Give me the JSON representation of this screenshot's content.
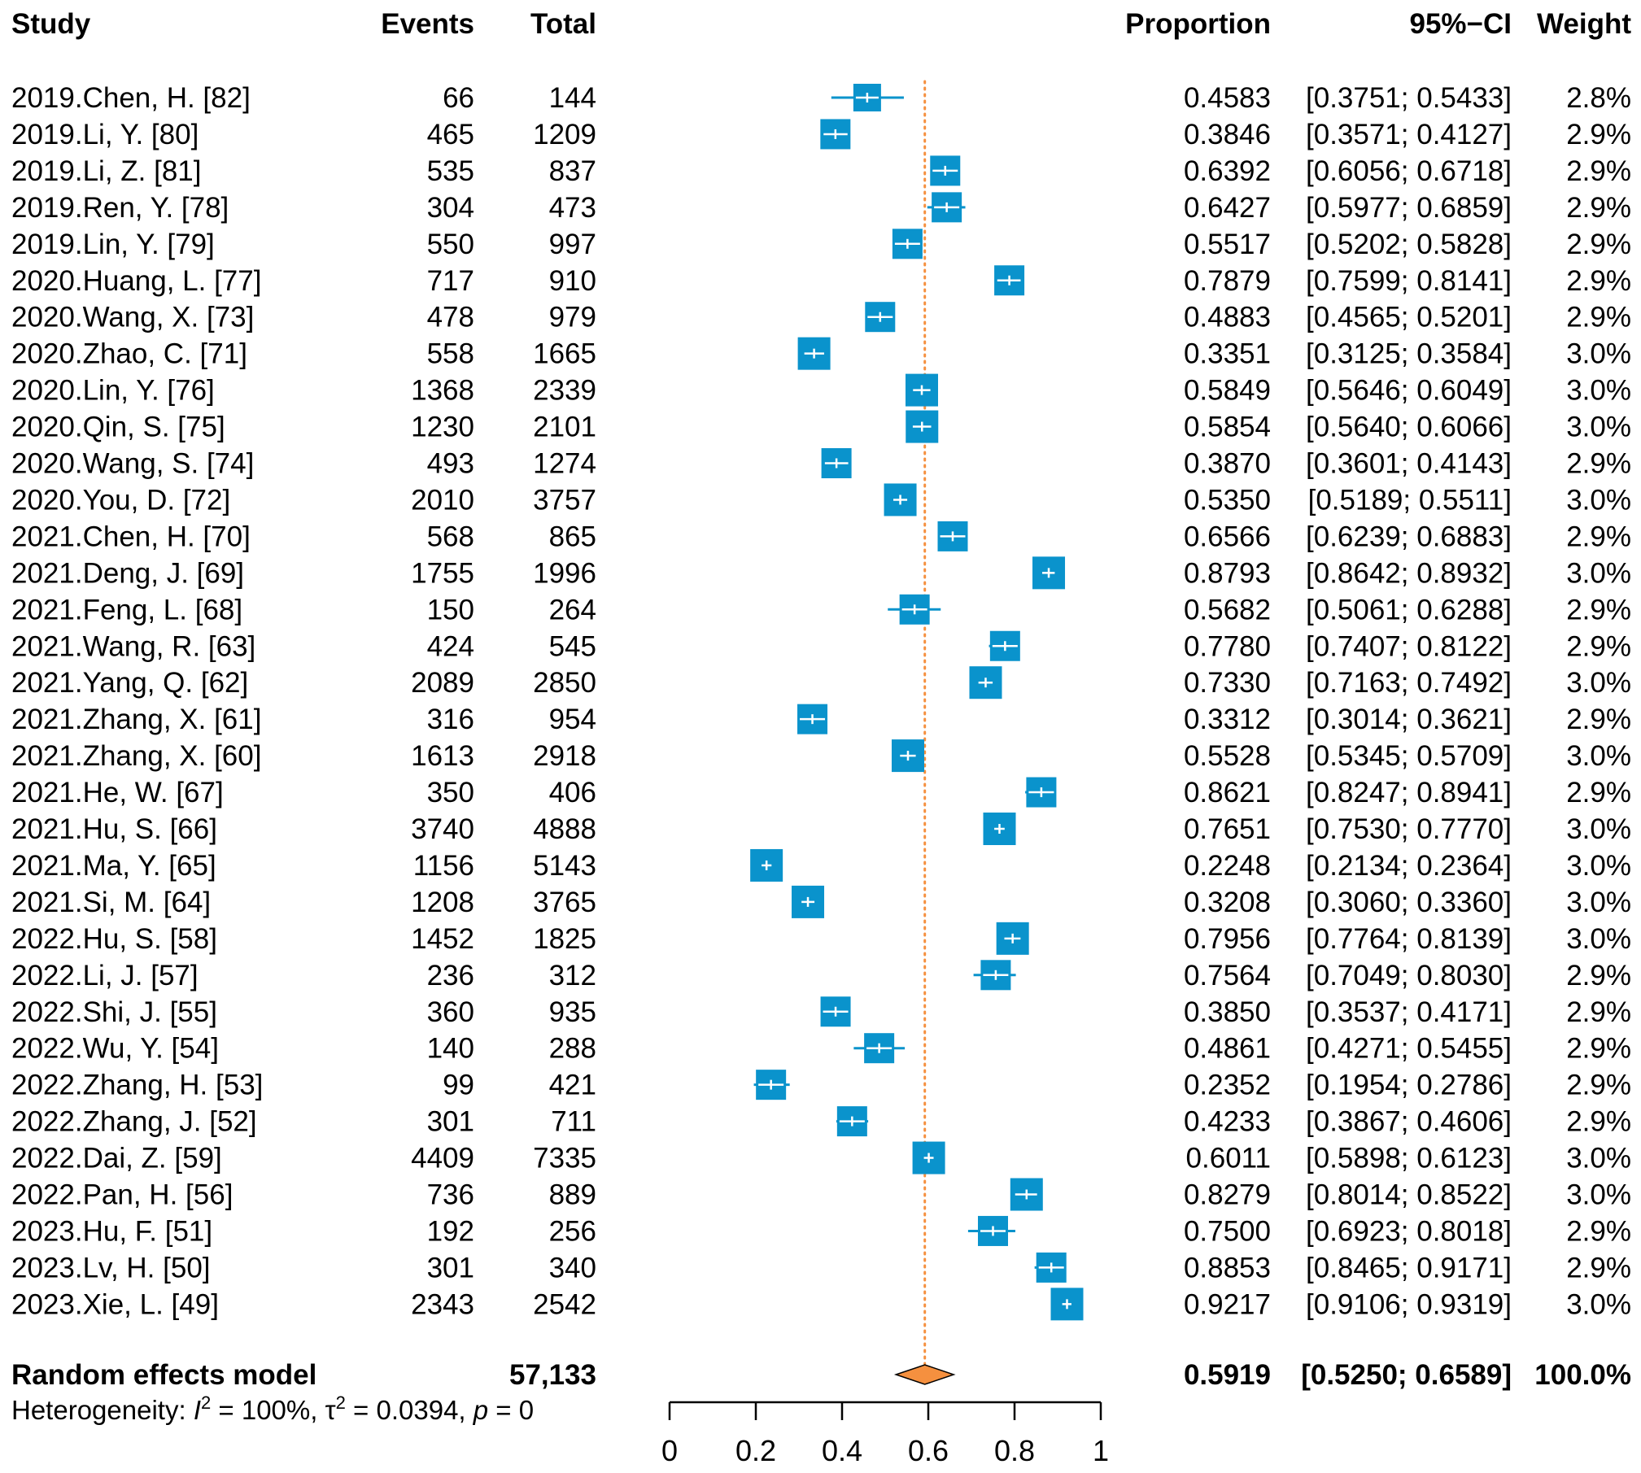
{
  "chart_data": {
    "type": "forest",
    "headers": {
      "study": "Study",
      "events": "Events",
      "total": "Total",
      "proportion": "Proportion",
      "ci": "95%−CI",
      "weight": "Weight"
    },
    "studies": [
      {
        "study": "2019.Chen, H. [82]",
        "events": "66",
        "total": "144",
        "proportion": 0.4583,
        "proportion_text": "0.4583",
        "ci": [
          0.3751,
          0.5433
        ],
        "ci_text": "[0.3751; 0.5433]",
        "weight": 2.8,
        "weight_text": "2.8%"
      },
      {
        "study": "2019.Li, Y. [80]",
        "events": "465",
        "total": "1209",
        "proportion": 0.3846,
        "proportion_text": "0.3846",
        "ci": [
          0.3571,
          0.4127
        ],
        "ci_text": "[0.3571; 0.4127]",
        "weight": 2.9,
        "weight_text": "2.9%"
      },
      {
        "study": "2019.Li, Z. [81]",
        "events": "535",
        "total": "837",
        "proportion": 0.6392,
        "proportion_text": "0.6392",
        "ci": [
          0.6056,
          0.6718
        ],
        "ci_text": "[0.6056; 0.6718]",
        "weight": 2.9,
        "weight_text": "2.9%"
      },
      {
        "study": "2019.Ren, Y. [78]",
        "events": "304",
        "total": "473",
        "proportion": 0.6427,
        "proportion_text": "0.6427",
        "ci": [
          0.5977,
          0.6859
        ],
        "ci_text": "[0.5977; 0.6859]",
        "weight": 2.9,
        "weight_text": "2.9%"
      },
      {
        "study": "2019.Lin, Y. [79]",
        "events": "550",
        "total": "997",
        "proportion": 0.5517,
        "proportion_text": "0.5517",
        "ci": [
          0.5202,
          0.5828
        ],
        "ci_text": "[0.5202; 0.5828]",
        "weight": 2.9,
        "weight_text": "2.9%"
      },
      {
        "study": "2020.Huang, L. [77]",
        "events": "717",
        "total": "910",
        "proportion": 0.7879,
        "proportion_text": "0.7879",
        "ci": [
          0.7599,
          0.8141
        ],
        "ci_text": "[0.7599; 0.8141]",
        "weight": 2.9,
        "weight_text": "2.9%"
      },
      {
        "study": "2020.Wang, X. [73]",
        "events": "478",
        "total": "979",
        "proportion": 0.4883,
        "proportion_text": "0.4883",
        "ci": [
          0.4565,
          0.5201
        ],
        "ci_text": "[0.4565; 0.5201]",
        "weight": 2.9,
        "weight_text": "2.9%"
      },
      {
        "study": "2020.Zhao, C. [71]",
        "events": "558",
        "total": "1665",
        "proportion": 0.3351,
        "proportion_text": "0.3351",
        "ci": [
          0.3125,
          0.3584
        ],
        "ci_text": "[0.3125; 0.3584]",
        "weight": 3.0,
        "weight_text": "3.0%"
      },
      {
        "study": "2020.Lin, Y. [76]",
        "events": "1368",
        "total": "2339",
        "proportion": 0.5849,
        "proportion_text": "0.5849",
        "ci": [
          0.5646,
          0.6049
        ],
        "ci_text": "[0.5646; 0.6049]",
        "weight": 3.0,
        "weight_text": "3.0%"
      },
      {
        "study": "2020.Qin, S. [75]",
        "events": "1230",
        "total": "2101",
        "proportion": 0.5854,
        "proportion_text": "0.5854",
        "ci": [
          0.564,
          0.6066
        ],
        "ci_text": "[0.5640; 0.6066]",
        "weight": 3.0,
        "weight_text": "3.0%"
      },
      {
        "study": "2020.Wang, S. [74]",
        "events": "493",
        "total": "1274",
        "proportion": 0.387,
        "proportion_text": "0.3870",
        "ci": [
          0.3601,
          0.4143
        ],
        "ci_text": "[0.3601; 0.4143]",
        "weight": 2.9,
        "weight_text": "2.9%"
      },
      {
        "study": "2020.You, D. [72]",
        "events": "2010",
        "total": "3757",
        "proportion": 0.535,
        "proportion_text": "0.5350",
        "ci": [
          0.5189,
          0.5511
        ],
        "ci_text": "[0.5189; 0.5511]",
        "weight": 3.0,
        "weight_text": "3.0%"
      },
      {
        "study": "2021.Chen, H. [70]",
        "events": "568",
        "total": "865",
        "proportion": 0.6566,
        "proportion_text": "0.6566",
        "ci": [
          0.6239,
          0.6883
        ],
        "ci_text": "[0.6239; 0.6883]",
        "weight": 2.9,
        "weight_text": "2.9%"
      },
      {
        "study": "2021.Deng, J. [69]",
        "events": "1755",
        "total": "1996",
        "proportion": 0.8793,
        "proportion_text": "0.8793",
        "ci": [
          0.8642,
          0.8932
        ],
        "ci_text": "[0.8642; 0.8932]",
        "weight": 3.0,
        "weight_text": "3.0%"
      },
      {
        "study": "2021.Feng, L. [68]",
        "events": "150",
        "total": "264",
        "proportion": 0.5682,
        "proportion_text": "0.5682",
        "ci": [
          0.5061,
          0.6288
        ],
        "ci_text": "[0.5061; 0.6288]",
        "weight": 2.9,
        "weight_text": "2.9%"
      },
      {
        "study": "2021.Wang, R. [63]",
        "events": "424",
        "total": "545",
        "proportion": 0.778,
        "proportion_text": "0.7780",
        "ci": [
          0.7407,
          0.8122
        ],
        "ci_text": "[0.7407; 0.8122]",
        "weight": 2.9,
        "weight_text": "2.9%"
      },
      {
        "study": "2021.Yang, Q. [62]",
        "events": "2089",
        "total": "2850",
        "proportion": 0.733,
        "proportion_text": "0.7330",
        "ci": [
          0.7163,
          0.7492
        ],
        "ci_text": "[0.7163; 0.7492]",
        "weight": 3.0,
        "weight_text": "3.0%"
      },
      {
        "study": "2021.Zhang, X. [61]",
        "events": "316",
        "total": "954",
        "proportion": 0.3312,
        "proportion_text": "0.3312",
        "ci": [
          0.3014,
          0.3621
        ],
        "ci_text": "[0.3014; 0.3621]",
        "weight": 2.9,
        "weight_text": "2.9%"
      },
      {
        "study": "2021.Zhang, X. [60]",
        "events": "1613",
        "total": "2918",
        "proportion": 0.5528,
        "proportion_text": "0.5528",
        "ci": [
          0.5345,
          0.5709
        ],
        "ci_text": "[0.5345; 0.5709]",
        "weight": 3.0,
        "weight_text": "3.0%"
      },
      {
        "study": "2021.He, W. [67]",
        "events": "350",
        "total": "406",
        "proportion": 0.8621,
        "proportion_text": "0.8621",
        "ci": [
          0.8247,
          0.8941
        ],
        "ci_text": "[0.8247; 0.8941]",
        "weight": 2.9,
        "weight_text": "2.9%"
      },
      {
        "study": "2021.Hu, S. [66]",
        "events": "3740",
        "total": "4888",
        "proportion": 0.7651,
        "proportion_text": "0.7651",
        "ci": [
          0.753,
          0.777
        ],
        "ci_text": "[0.7530; 0.7770]",
        "weight": 3.0,
        "weight_text": "3.0%"
      },
      {
        "study": "2021.Ma, Y. [65]",
        "events": "1156",
        "total": "5143",
        "proportion": 0.2248,
        "proportion_text": "0.2248",
        "ci": [
          0.2134,
          0.2364
        ],
        "ci_text": "[0.2134; 0.2364]",
        "weight": 3.0,
        "weight_text": "3.0%"
      },
      {
        "study": "2021.Si, M. [64]",
        "events": "1208",
        "total": "3765",
        "proportion": 0.3208,
        "proportion_text": "0.3208",
        "ci": [
          0.306,
          0.336
        ],
        "ci_text": "[0.3060; 0.3360]",
        "weight": 3.0,
        "weight_text": "3.0%"
      },
      {
        "study": "2022.Hu, S. [58]",
        "events": "1452",
        "total": "1825",
        "proportion": 0.7956,
        "proportion_text": "0.7956",
        "ci": [
          0.7764,
          0.8139
        ],
        "ci_text": "[0.7764; 0.8139]",
        "weight": 3.0,
        "weight_text": "3.0%"
      },
      {
        "study": "2022.Li, J. [57]",
        "events": "236",
        "total": "312",
        "proportion": 0.7564,
        "proportion_text": "0.7564",
        "ci": [
          0.7049,
          0.803
        ],
        "ci_text": "[0.7049; 0.8030]",
        "weight": 2.9,
        "weight_text": "2.9%"
      },
      {
        "study": "2022.Shi, J. [55]",
        "events": "360",
        "total": "935",
        "proportion": 0.385,
        "proportion_text": "0.3850",
        "ci": [
          0.3537,
          0.4171
        ],
        "ci_text": "[0.3537; 0.4171]",
        "weight": 2.9,
        "weight_text": "2.9%"
      },
      {
        "study": "2022.Wu, Y. [54]",
        "events": "140",
        "total": "288",
        "proportion": 0.4861,
        "proportion_text": "0.4861",
        "ci": [
          0.4271,
          0.5455
        ],
        "ci_text": "[0.4271; 0.5455]",
        "weight": 2.9,
        "weight_text": "2.9%"
      },
      {
        "study": "2022.Zhang, H. [53]",
        "events": "99",
        "total": "421",
        "proportion": 0.2352,
        "proportion_text": "0.2352",
        "ci": [
          0.1954,
          0.2786
        ],
        "ci_text": "[0.1954; 0.2786]",
        "weight": 2.9,
        "weight_text": "2.9%"
      },
      {
        "study": "2022.Zhang, J. [52]",
        "events": "301",
        "total": "711",
        "proportion": 0.4233,
        "proportion_text": "0.4233",
        "ci": [
          0.3867,
          0.4606
        ],
        "ci_text": "[0.3867; 0.4606]",
        "weight": 2.9,
        "weight_text": "2.9%"
      },
      {
        "study": "2022.Dai, Z. [59]",
        "events": "4409",
        "total": "7335",
        "proportion": 0.6011,
        "proportion_text": "0.6011",
        "ci": [
          0.5898,
          0.6123
        ],
        "ci_text": "[0.5898; 0.6123]",
        "weight": 3.0,
        "weight_text": "3.0%"
      },
      {
        "study": "2022.Pan, H. [56]",
        "events": "736",
        "total": "889",
        "proportion": 0.8279,
        "proportion_text": "0.8279",
        "ci": [
          0.8014,
          0.8522
        ],
        "ci_text": "[0.8014; 0.8522]",
        "weight": 3.0,
        "weight_text": "3.0%"
      },
      {
        "study": "2023.Hu, F. [51]",
        "events": "192",
        "total": "256",
        "proportion": 0.75,
        "proportion_text": "0.7500",
        "ci": [
          0.6923,
          0.8018
        ],
        "ci_text": "[0.6923; 0.8018]",
        "weight": 2.9,
        "weight_text": "2.9%"
      },
      {
        "study": "2023.Lv, H. [50]",
        "events": "301",
        "total": "340",
        "proportion": 0.8853,
        "proportion_text": "0.8853",
        "ci": [
          0.8465,
          0.9171
        ],
        "ci_text": "[0.8465; 0.9171]",
        "weight": 2.9,
        "weight_text": "2.9%"
      },
      {
        "study": "2023.Xie, L. [49]",
        "events": "2343",
        "total": "2542",
        "proportion": 0.9217,
        "proportion_text": "0.9217",
        "ci": [
          0.9106,
          0.9319
        ],
        "ci_text": "[0.9106; 0.9319]",
        "weight": 3.0,
        "weight_text": "3.0%"
      }
    ],
    "pooled": {
      "label": "Random effects model",
      "total": "57,133",
      "proportion": 0.5919,
      "proportion_text": "0.5919",
      "ci": [
        0.525,
        0.6589
      ],
      "ci_text": "[0.5250; 0.6589]",
      "weight_text": "100.0%"
    },
    "heterogeneity": {
      "prefix": "Heterogeneity: ",
      "i2_symbol": "I",
      "i2_exp": "2",
      "i2_value": " = 100%, ",
      "tau_symbol": "τ",
      "tau_exp": "2",
      "tau_value": " = 0.0394, ",
      "p_symbol": "p",
      "p_value": " = 0"
    },
    "x_axis": {
      "range": [
        0,
        1
      ],
      "ticks": [
        0,
        0.2,
        0.4,
        0.6,
        0.8,
        1
      ],
      "tick_labels": [
        "0",
        "0.2",
        "0.4",
        "0.6",
        "0.8",
        "1"
      ]
    },
    "reference_line": 0.5919,
    "colors": {
      "study_marker": "#0a93cc",
      "ci_line": "#0a93cc",
      "ci_inner_line": "#ffffff",
      "pooled_diamond": "#f5903f",
      "reference_line": "#f5903f",
      "text": "#000000"
    }
  }
}
